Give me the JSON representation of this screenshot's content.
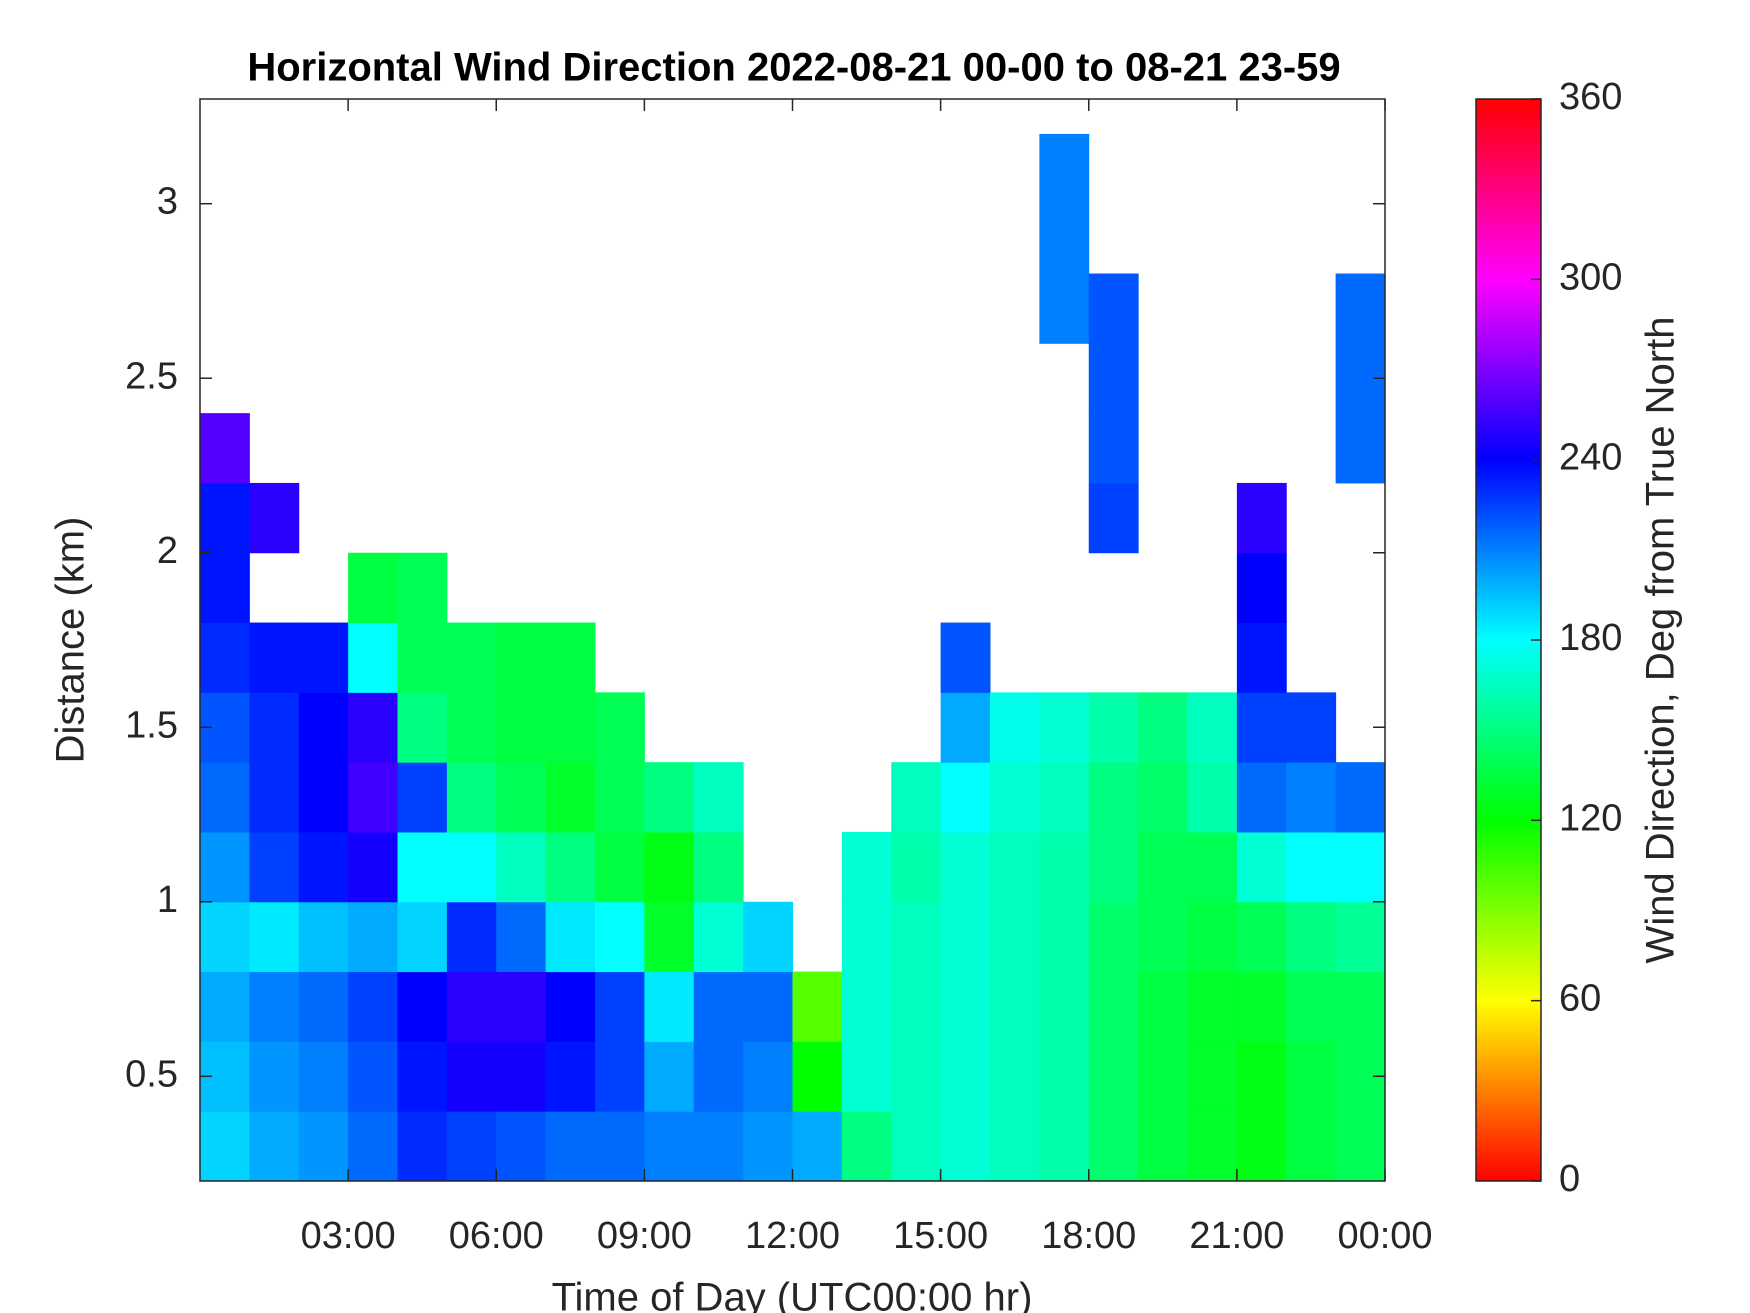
{
  "chart_data": {
    "type": "heatmap",
    "title": "Horizontal Wind Direction 2022-08-21 00-00 to 08-21 23-59",
    "x_label": "Time of Day (UTC00:00 hr)",
    "y_label": "Distance (km)",
    "colorbar_label": "Wind Direction, Deg from True North",
    "colormap": "hsv",
    "x": [
      0.5,
      1.5,
      2.5,
      3.5,
      4.5,
      5.5,
      6.5,
      7.5,
      8.5,
      9.5,
      10.5,
      11.5,
      12.5,
      13.5,
      14.5,
      15.5,
      16.5,
      17.5,
      18.5,
      19.5,
      20.5,
      21.5,
      22.5,
      23.5
    ],
    "y": [
      0.3,
      0.5,
      0.7,
      0.9,
      1.1,
      1.3,
      1.5,
      1.7,
      1.9,
      2.1,
      2.3,
      2.5,
      2.7,
      2.9,
      3.1
    ],
    "values": [
      [
        190,
        195,
        200,
        190,
        205,
        215,
        220,
        230,
        235,
        235,
        260,
        null,
        null,
        null,
        null
      ],
      [
        200,
        205,
        210,
        185,
        225,
        230,
        230,
        235,
        null,
        250,
        null,
        null,
        null,
        null,
        null
      ],
      [
        205,
        210,
        215,
        195,
        235,
        240,
        240,
        235,
        null,
        null,
        null,
        null,
        null,
        null,
        null
      ],
      [
        215,
        220,
        225,
        200,
        245,
        255,
        250,
        180,
        135,
        null,
        null,
        null,
        null,
        null,
        null
      ],
      [
        230,
        235,
        240,
        190,
        180,
        225,
        150,
        140,
        140,
        null,
        null,
        null,
        null,
        null,
        null
      ],
      [
        225,
        245,
        250,
        230,
        180,
        150,
        140,
        140,
        null,
        null,
        null,
        null,
        null,
        null,
        null
      ],
      [
        220,
        245,
        250,
        215,
        165,
        140,
        135,
        135,
        null,
        null,
        null,
        null,
        null,
        null,
        null
      ],
      [
        215,
        235,
        240,
        185,
        150,
        130,
        135,
        135,
        null,
        null,
        null,
        null,
        null,
        null,
        null
      ],
      [
        215,
        225,
        225,
        180,
        135,
        140,
        140,
        null,
        null,
        null,
        null,
        null,
        null,
        null,
        null
      ],
      [
        210,
        200,
        185,
        130,
        125,
        150,
        null,
        null,
        null,
        null,
        null,
        null,
        null,
        null,
        null
      ],
      [
        210,
        215,
        215,
        170,
        150,
        165,
        null,
        null,
        null,
        null,
        null,
        null,
        null,
        null,
        null
      ],
      [
        205,
        210,
        215,
        190,
        null,
        null,
        null,
        null,
        null,
        null,
        null,
        null,
        null,
        null,
        null
      ],
      [
        200,
        120,
        100,
        null,
        null,
        null,
        null,
        null,
        null,
        null,
        null,
        null,
        null,
        null,
        null
      ],
      [
        150,
        170,
        170,
        170,
        170,
        null,
        null,
        null,
        null,
        null,
        null,
        null,
        null,
        null,
        null
      ],
      [
        165,
        165,
        165,
        165,
        160,
        165,
        null,
        null,
        null,
        null,
        null,
        null,
        null,
        null,
        null
      ],
      [
        170,
        170,
        170,
        170,
        170,
        180,
        200,
        220,
        null,
        null,
        null,
        null,
        null,
        null,
        null
      ],
      [
        165,
        165,
        165,
        165,
        165,
        170,
        175,
        null,
        null,
        null,
        null,
        null,
        null,
        null,
        null
      ],
      [
        160,
        160,
        160,
        160,
        160,
        165,
        170,
        null,
        null,
        null,
        null,
        null,
        210,
        210,
        210
      ],
      [
        145,
        145,
        145,
        145,
        150,
        150,
        160,
        null,
        null,
        225,
        220,
        220,
        220,
        null,
        null
      ],
      [
        135,
        135,
        135,
        140,
        140,
        145,
        150,
        null,
        null,
        null,
        null,
        null,
        null,
        null,
        null
      ],
      [
        130,
        130,
        130,
        135,
        140,
        160,
        165,
        null,
        null,
        null,
        null,
        null,
        null,
        null,
        null
      ],
      [
        125,
        125,
        130,
        140,
        170,
        215,
        225,
        235,
        240,
        250,
        null,
        null,
        null,
        null,
        null
      ],
      [
        135,
        135,
        140,
        150,
        180,
        210,
        225,
        null,
        null,
        null,
        null,
        null,
        null,
        null,
        null
      ],
      [
        140,
        140,
        140,
        155,
        180,
        215,
        null,
        null,
        null,
        null,
        215,
        215,
        215,
        null,
        null
      ]
    ],
    "xlim": [
      0,
      24
    ],
    "xticks": [
      {
        "value": 3,
        "label": "03:00"
      },
      {
        "value": 6,
        "label": "06:00"
      },
      {
        "value": 9,
        "label": "09:00"
      },
      {
        "value": 12,
        "label": "12:00"
      },
      {
        "value": 15,
        "label": "15:00"
      },
      {
        "value": 18,
        "label": "18:00"
      },
      {
        "value": 21,
        "label": "21:00"
      },
      {
        "value": 24,
        "label": "00:00"
      }
    ],
    "ylim": [
      0.2,
      3.3
    ],
    "yticks": [
      0.5,
      1,
      1.5,
      2,
      2.5,
      3
    ],
    "clim": [
      0,
      360
    ],
    "cticks": [
      0,
      60,
      120,
      180,
      240,
      300,
      360
    ]
  }
}
